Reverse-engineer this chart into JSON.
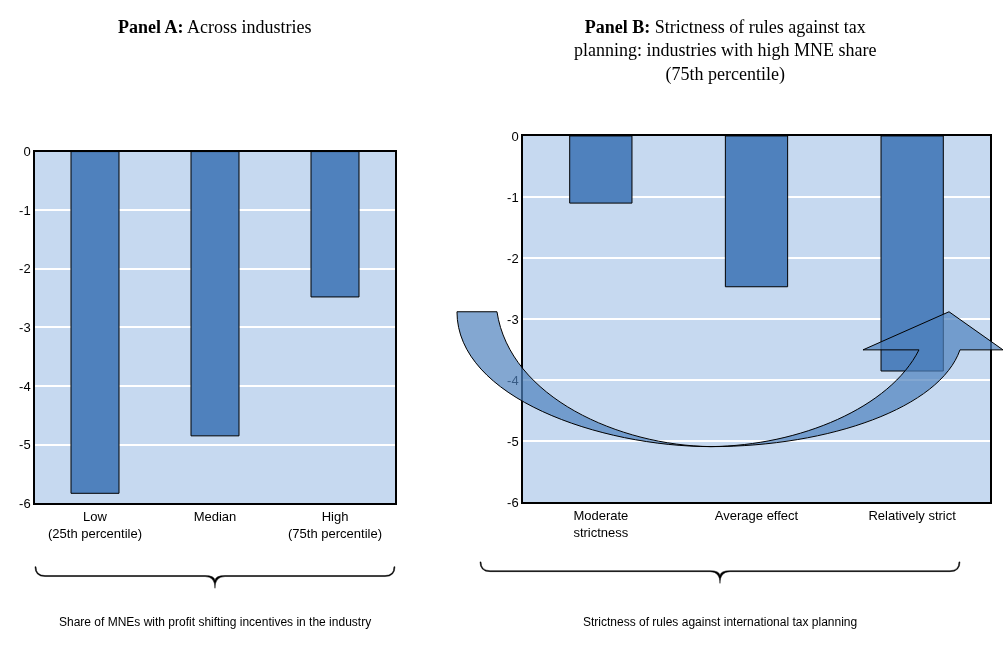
{
  "chart_data": [
    {
      "type": "bar",
      "title": "Panel A: Across industries",
      "categories": [
        "Low\n(25th percentile)",
        "Median",
        "High\n(75th percentile)"
      ],
      "values": [
        -5.83,
        -4.85,
        -2.48
      ],
      "color": "#4f81bd",
      "ylim": [
        -6,
        0
      ],
      "yticks": [
        0,
        -1,
        -2,
        -3,
        -4,
        -5,
        -6
      ],
      "grid": "y",
      "annotations": [
        "Share of MNEs with profit shifting incentives in the industry"
      ]
    },
    {
      "type": "bar",
      "title": "Panel B: Strictness of rules against tax\nplanning: industries with high MNE share\n(75th percentile)",
      "categories": [
        "Moderate\nstrictness",
        "Average effect",
        "Relatively strict"
      ],
      "values": [
        -1.1,
        -2.47,
        -3.85
      ],
      "color": "#4f81bd",
      "ylim": [
        -6,
        0
      ],
      "yticks": [
        0,
        -1,
        -2,
        -3,
        -4,
        -5,
        -6
      ],
      "grid": "y",
      "annotations": [
        "Strictness of rules against international tax planning"
      ]
    }
  ]
}
